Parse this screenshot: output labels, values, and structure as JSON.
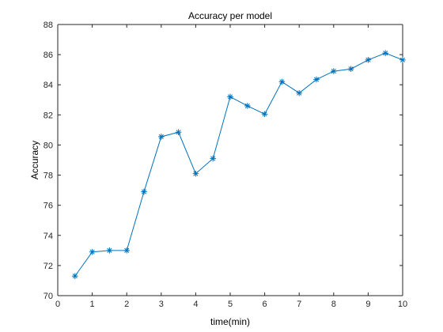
{
  "chart_data": {
    "type": "line",
    "title": "Accuracy per model",
    "xlabel": "time(min)",
    "ylabel": "Accuracy",
    "xlim": [
      0,
      10
    ],
    "ylim": [
      70,
      88
    ],
    "xticks": [
      0,
      1,
      2,
      3,
      4,
      5,
      6,
      7,
      8,
      9,
      10
    ],
    "yticks": [
      70,
      72,
      74,
      76,
      78,
      80,
      82,
      84,
      86,
      88
    ],
    "grid": false,
    "marker": "asterisk",
    "series": [
      {
        "color": "#0072BD",
        "x": [
          0.5,
          1.0,
          1.5,
          2.0,
          2.5,
          3.0,
          3.5,
          4.0,
          4.5,
          5.0,
          5.5,
          6.0,
          6.5,
          7.0,
          7.5,
          8.0,
          8.5,
          9.0,
          9.5,
          10.0
        ],
        "y": [
          71.3,
          72.9,
          73.0,
          73.0,
          76.9,
          80.55,
          80.85,
          78.1,
          79.1,
          83.2,
          82.6,
          82.05,
          84.2,
          83.45,
          84.35,
          84.9,
          85.05,
          85.65,
          86.1,
          85.65
        ]
      }
    ]
  }
}
